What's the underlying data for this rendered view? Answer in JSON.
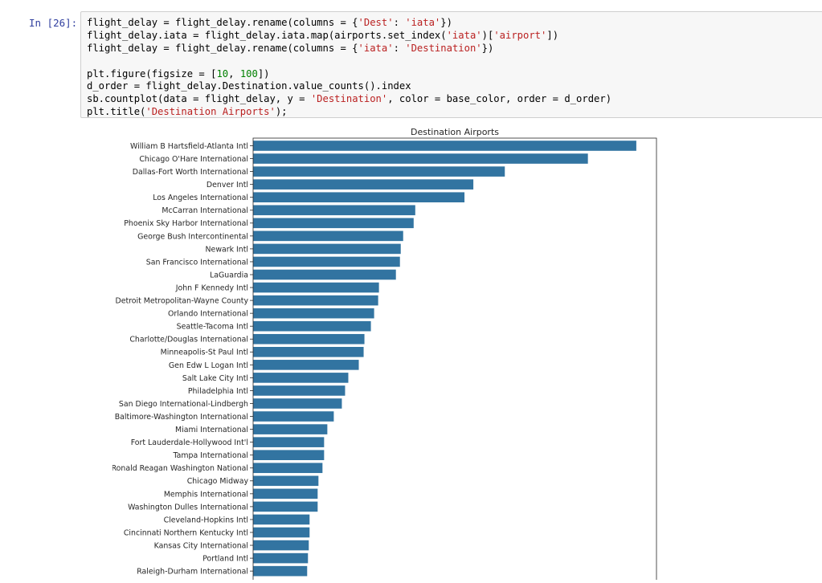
{
  "cell": {
    "prompt": "In [26]:",
    "code_lines": [
      [
        {
          "t": "flight_delay = flight_delay.rename(columns = {"
        },
        {
          "t": "'Dest'",
          "c": "str"
        },
        {
          "t": ": "
        },
        {
          "t": "'iata'",
          "c": "str"
        },
        {
          "t": "})"
        }
      ],
      [
        {
          "t": "flight_delay.iata = flight_delay.iata.map(airports.set_index("
        },
        {
          "t": "'iata'",
          "c": "str"
        },
        {
          "t": ")["
        },
        {
          "t": "'airport'",
          "c": "str"
        },
        {
          "t": "])"
        }
      ],
      [
        {
          "t": "flight_delay = flight_delay.rename(columns = {"
        },
        {
          "t": "'iata'",
          "c": "str"
        },
        {
          "t": ": "
        },
        {
          "t": "'Destination'",
          "c": "str"
        },
        {
          "t": "})"
        }
      ],
      [],
      [
        {
          "t": "plt.figure(figsize = ["
        },
        {
          "t": "10",
          "c": "num"
        },
        {
          "t": ", "
        },
        {
          "t": "100",
          "c": "num"
        },
        {
          "t": "])"
        }
      ],
      [
        {
          "t": "d_order = flight_delay.Destination.value_counts().index"
        }
      ],
      [
        {
          "t": "sb.countplot(data = flight_delay, y = "
        },
        {
          "t": "'Destination'",
          "c": "str"
        },
        {
          "t": ", color = base_color, order = d_order)"
        }
      ],
      [
        {
          "t": "plt.title("
        },
        {
          "t": "'Destination Airports'",
          "c": "str"
        },
        {
          "t": ");"
        }
      ]
    ]
  },
  "chart_data": {
    "type": "bar",
    "orientation": "horizontal",
    "title": "Destination Airports",
    "bar_color": "#3274a1",
    "categories": [
      "William B Hartsfield-Atlanta Intl",
      "Chicago O'Hare International",
      "Dallas-Fort Worth International",
      "Denver Intl",
      "Los Angeles International",
      "McCarran International",
      "Phoenix Sky Harbor International",
      "George Bush Intercontinental",
      "Newark Intl",
      "San Francisco International",
      "LaGuardia",
      "John F Kennedy Intl",
      "Detroit Metropolitan-Wayne County",
      "Orlando International",
      "Seattle-Tacoma Intl",
      "Charlotte/Douglas International",
      "Minneapolis-St Paul Intl",
      "Gen Edw L Logan Intl",
      "Salt Lake City Intl",
      "Philadelphia Intl",
      "San Diego International-Lindbergh",
      "Baltimore-Washington International",
      "Miami International",
      "Fort Lauderdale-Hollywood Int'l",
      "Tampa International",
      "Ronald Reagan Washington National",
      "Chicago Midway",
      "Memphis International",
      "Washington Dulles International",
      "Cleveland-Hopkins Intl",
      "Cincinnati Northern Kentucky Intl",
      "Kansas City International",
      "Portland Intl",
      "Raleigh-Durham International"
    ],
    "values": [
      475,
      415,
      312,
      273,
      262,
      201,
      199,
      186,
      183,
      182,
      177,
      156,
      155,
      150,
      146,
      138,
      137,
      131,
      118,
      114,
      110,
      100,
      92,
      88,
      88,
      86,
      81,
      80,
      80,
      70,
      70,
      69,
      68,
      67
    ],
    "xlim": [
      0,
      500
    ],
    "xlabel": "",
    "ylabel": "",
    "grid": false
  }
}
